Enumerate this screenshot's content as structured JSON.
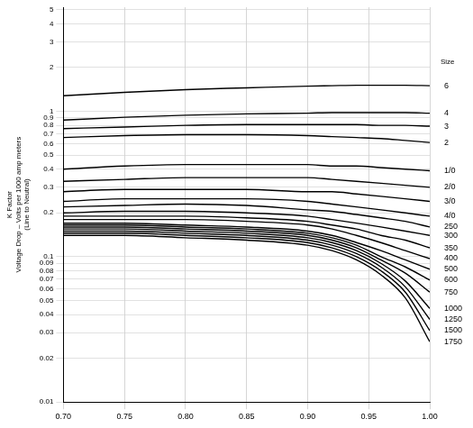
{
  "chart_data": {
    "type": "line",
    "y_label": "K Factor\nVoltage Drop – Volts per 1000 amp meters\n(Line to Neutral)",
    "annotations": [
      "Size"
    ],
    "log": "y",
    "grid": true,
    "color": "#000000",
    "x": [
      0.7,
      0.75,
      0.8,
      0.85,
      0.9,
      0.92,
      0.94,
      0.96,
      0.98,
      1.0
    ],
    "xlim": [
      0.7,
      1.0
    ],
    "xticks": [
      {
        "value": 0.7,
        "label": "0.70"
      },
      0.75,
      {
        "value": 0.8,
        "label": "0.80"
      },
      0.85,
      {
        "value": 0.9,
        "label": "0.90"
      },
      0.95,
      {
        "value": 1.0,
        "label": "1.00"
      }
    ],
    "ylim": [
      0.01,
      5.2
    ],
    "yticks": [
      0.01,
      0.02,
      0.03,
      0.04,
      0.05,
      0.06,
      0.07,
      0.08,
      0.09,
      0.1,
      0.2,
      0.3,
      0.4,
      0.5,
      0.6,
      0.7,
      0.8,
      0.9,
      1,
      2,
      3,
      4,
      5
    ],
    "series": [
      {
        "name": "6",
        "values": [
          1.28,
          1.35,
          1.41,
          1.45,
          1.49,
          1.5,
          1.51,
          1.51,
          1.51,
          1.5
        ]
      },
      {
        "name": "4",
        "values": [
          0.87,
          0.91,
          0.94,
          0.96,
          0.97,
          0.98,
          0.98,
          0.98,
          0.98,
          0.97
        ]
      },
      {
        "name": "3",
        "values": [
          0.76,
          0.78,
          0.8,
          0.81,
          0.81,
          0.81,
          0.81,
          0.8,
          0.8,
          0.79
        ]
      },
      {
        "name": "2",
        "values": [
          0.66,
          0.68,
          0.69,
          0.69,
          0.68,
          0.67,
          0.66,
          0.65,
          0.63,
          0.61
        ]
      },
      {
        "name": "1/0",
        "values": [
          0.4,
          0.42,
          0.43,
          0.43,
          0.43,
          0.42,
          0.42,
          0.41,
          0.4,
          0.39
        ]
      },
      {
        "name": "2/0",
        "values": [
          0.33,
          0.34,
          0.35,
          0.35,
          0.35,
          0.34,
          0.33,
          0.32,
          0.31,
          0.3
        ]
      },
      {
        "name": "3/0",
        "values": [
          0.28,
          0.29,
          0.29,
          0.29,
          0.28,
          0.28,
          0.27,
          0.26,
          0.25,
          0.24
        ]
      },
      {
        "name": "4/0",
        "values": [
          0.24,
          0.25,
          0.25,
          0.25,
          0.24,
          0.23,
          0.22,
          0.21,
          0.2,
          0.19
        ]
      },
      {
        "name": "250",
        "values": [
          0.22,
          0.225,
          0.23,
          0.225,
          0.21,
          0.205,
          0.195,
          0.185,
          0.175,
          0.16
        ]
      },
      {
        "name": "300",
        "values": [
          0.2,
          0.205,
          0.205,
          0.2,
          0.19,
          0.18,
          0.17,
          0.16,
          0.15,
          0.14
        ]
      },
      {
        "name": "350",
        "values": [
          0.19,
          0.19,
          0.19,
          0.185,
          0.175,
          0.165,
          0.155,
          0.14,
          0.13,
          0.115
        ]
      },
      {
        "name": "400",
        "values": [
          0.18,
          0.18,
          0.18,
          0.175,
          0.165,
          0.155,
          0.14,
          0.125,
          0.11,
          0.097
        ]
      },
      {
        "name": "500",
        "values": [
          0.17,
          0.17,
          0.165,
          0.16,
          0.15,
          0.14,
          0.125,
          0.11,
          0.095,
          0.082
        ]
      },
      {
        "name": "600",
        "values": [
          0.165,
          0.165,
          0.16,
          0.155,
          0.145,
          0.135,
          0.12,
          0.1,
          0.085,
          0.069
        ]
      },
      {
        "name": "750",
        "values": [
          0.16,
          0.16,
          0.155,
          0.15,
          0.14,
          0.13,
          0.115,
          0.095,
          0.077,
          0.057
        ]
      },
      {
        "name": "1000",
        "values": [
          0.155,
          0.155,
          0.15,
          0.145,
          0.135,
          0.125,
          0.11,
          0.09,
          0.068,
          0.044
        ]
      },
      {
        "name": "1250",
        "values": [
          0.15,
          0.15,
          0.145,
          0.14,
          0.13,
          0.12,
          0.105,
          0.085,
          0.062,
          0.037
        ]
      },
      {
        "name": "1500",
        "values": [
          0.145,
          0.145,
          0.14,
          0.135,
          0.125,
          0.115,
          0.1,
          0.08,
          0.057,
          0.031
        ]
      },
      {
        "name": "1750",
        "values": [
          0.14,
          0.14,
          0.135,
          0.13,
          0.12,
          0.11,
          0.095,
          0.075,
          0.052,
          0.026
        ]
      }
    ]
  }
}
